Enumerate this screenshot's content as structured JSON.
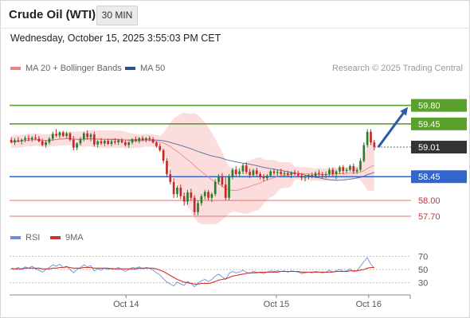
{
  "header": {
    "instrument": "Crude Oil (WTI)",
    "timeframe": "30 MIN",
    "datetime": "Wednesday, October 15, 2025 3:55:03 PM CET"
  },
  "legend": {
    "ma20": "MA 20 + Bollinger Bands",
    "ma50": "MA 50",
    "credit": "Research © 2025 Trading Central",
    "rsi": "RSI",
    "rsi_ma": "9MA"
  },
  "colors": {
    "ma20": "#f08080",
    "bollinger_fill": "#fbd9d9",
    "ma50": "#2c4f8f",
    "resistance": "#5aa02c",
    "pivot": "#3366cc",
    "support": "#e57373",
    "forecast_arrow": "#2b5ca8",
    "candle_up": "#2a7d2a",
    "candle_down": "#c62828",
    "rsi": "#6a8fd8",
    "rsi_ma": "#d32f2f",
    "price_tag": "#333333"
  },
  "chart_data": [
    {
      "type": "candlestick",
      "title": "Crude Oil (WTI)",
      "timeframe": "30 MIN",
      "x_ticks": [
        "Oct 14",
        "Oct 15",
        "Oct 16"
      ],
      "ylim": [
        57.55,
        60.05
      ],
      "current_price": 59.01,
      "levels": [
        {
          "value": 59.8,
          "label": "59.80",
          "kind": "resistance",
          "style": "green-tag"
        },
        {
          "value": 59.45,
          "label": "59.45",
          "kind": "resistance",
          "style": "green-tag"
        },
        {
          "value": 58.45,
          "label": "58.45",
          "kind": "pivot",
          "style": "blue-tag"
        },
        {
          "value": 58.0,
          "label": "58.00",
          "kind": "support",
          "style": "red-text"
        },
        {
          "value": 57.7,
          "label": "57.70",
          "kind": "support",
          "style": "red-text"
        }
      ],
      "forecast": {
        "direction": "up",
        "from": 59.01,
        "to": 59.8
      },
      "candles": [
        [
          59.15,
          59.2,
          59.08,
          59.1
        ],
        [
          59.1,
          59.18,
          59.05,
          59.14
        ],
        [
          59.14,
          59.2,
          59.1,
          59.12
        ],
        [
          59.12,
          59.17,
          59.06,
          59.15
        ],
        [
          59.15,
          59.22,
          59.1,
          59.18
        ],
        [
          59.18,
          59.24,
          59.12,
          59.16
        ],
        [
          59.16,
          59.22,
          59.11,
          59.19
        ],
        [
          59.19,
          59.25,
          59.14,
          59.17
        ],
        [
          59.17,
          59.22,
          59.1,
          59.12
        ],
        [
          59.12,
          59.17,
          59.02,
          59.05
        ],
        [
          59.05,
          59.14,
          59.0,
          59.1
        ],
        [
          59.1,
          59.2,
          59.06,
          59.17
        ],
        [
          59.17,
          59.3,
          59.13,
          59.26
        ],
        [
          59.26,
          59.35,
          59.2,
          59.23
        ],
        [
          59.23,
          59.31,
          59.18,
          59.29
        ],
        [
          59.29,
          59.32,
          59.2,
          59.22
        ],
        [
          59.22,
          59.3,
          59.18,
          59.27
        ],
        [
          59.27,
          59.3,
          59.12,
          59.15
        ],
        [
          59.15,
          59.22,
          58.95,
          59.0
        ],
        [
          59.0,
          59.1,
          58.95,
          59.08
        ],
        [
          59.08,
          59.2,
          59.04,
          59.16
        ],
        [
          59.16,
          59.3,
          59.12,
          59.27
        ],
        [
          59.27,
          59.33,
          59.15,
          59.2
        ],
        [
          59.2,
          59.28,
          59.12,
          59.25
        ],
        [
          59.25,
          59.3,
          59.02,
          59.06
        ],
        [
          59.06,
          59.14,
          59.0,
          59.12
        ],
        [
          59.12,
          59.18,
          59.05,
          59.08
        ],
        [
          59.08,
          59.15,
          59.03,
          59.13
        ],
        [
          59.13,
          59.17,
          59.05,
          59.07
        ],
        [
          59.07,
          59.15,
          59.03,
          59.12
        ],
        [
          59.12,
          59.18,
          59.06,
          59.1
        ],
        [
          59.1,
          59.16,
          59.05,
          59.14
        ],
        [
          59.14,
          59.18,
          59.08,
          59.1
        ],
        [
          59.1,
          59.14,
          59.02,
          59.05
        ],
        [
          59.05,
          59.12,
          59.0,
          59.1
        ],
        [
          59.1,
          59.18,
          59.06,
          59.16
        ],
        [
          59.16,
          59.21,
          59.1,
          59.13
        ],
        [
          59.13,
          59.2,
          59.08,
          59.18
        ],
        [
          59.18,
          59.22,
          59.12,
          59.15
        ],
        [
          59.15,
          59.2,
          59.1,
          59.18
        ],
        [
          59.18,
          59.22,
          59.12,
          59.16
        ],
        [
          59.16,
          59.2,
          59.08,
          59.1
        ],
        [
          59.1,
          59.12,
          59.0,
          59.03
        ],
        [
          59.03,
          59.08,
          58.92,
          58.95
        ],
        [
          58.95,
          58.98,
          58.7,
          58.75
        ],
        [
          58.75,
          58.8,
          58.45,
          58.5
        ],
        [
          58.5,
          58.58,
          58.3,
          58.35
        ],
        [
          58.35,
          58.42,
          58.05,
          58.12
        ],
        [
          58.12,
          58.28,
          58.05,
          58.24
        ],
        [
          58.24,
          58.3,
          58.02,
          58.08
        ],
        [
          58.08,
          58.15,
          57.9,
          57.98
        ],
        [
          57.98,
          58.2,
          57.92,
          58.15
        ],
        [
          58.15,
          58.22,
          58.0,
          58.05
        ],
        [
          58.05,
          58.1,
          57.72,
          57.78
        ],
        [
          57.78,
          58.0,
          57.72,
          57.95
        ],
        [
          57.95,
          58.12,
          57.9,
          58.08
        ],
        [
          58.08,
          58.2,
          58.02,
          58.16
        ],
        [
          58.16,
          58.2,
          58.0,
          58.05
        ],
        [
          58.05,
          58.15,
          57.97,
          58.12
        ],
        [
          58.12,
          58.4,
          58.08,
          58.35
        ],
        [
          58.35,
          58.5,
          58.3,
          58.46
        ],
        [
          58.46,
          58.52,
          58.25,
          58.3
        ],
        [
          58.3,
          58.45,
          58.0,
          58.05
        ],
        [
          58.05,
          58.5,
          58.0,
          58.45
        ],
        [
          58.45,
          58.62,
          58.4,
          58.58
        ],
        [
          58.58,
          58.65,
          58.45,
          58.5
        ],
        [
          58.5,
          58.6,
          58.44,
          58.55
        ],
        [
          58.55,
          58.7,
          58.5,
          58.66
        ],
        [
          58.66,
          58.72,
          58.5,
          58.54
        ],
        [
          58.54,
          58.6,
          58.42,
          58.48
        ],
        [
          58.48,
          58.6,
          58.46,
          58.57
        ],
        [
          58.57,
          58.62,
          58.45,
          58.5
        ],
        [
          58.5,
          58.54,
          58.4,
          58.45
        ],
        [
          58.45,
          58.5,
          58.36,
          58.42
        ],
        [
          58.42,
          58.5,
          58.38,
          58.47
        ],
        [
          58.47,
          58.58,
          58.44,
          58.55
        ],
        [
          58.55,
          58.6,
          58.48,
          58.52
        ],
        [
          58.52,
          58.58,
          58.46,
          58.54
        ],
        [
          58.54,
          58.6,
          58.48,
          58.5
        ],
        [
          58.5,
          58.55,
          58.45,
          58.52
        ],
        [
          58.52,
          58.56,
          58.46,
          58.49
        ],
        [
          58.49,
          58.55,
          58.42,
          58.53
        ],
        [
          58.53,
          58.58,
          58.47,
          58.5
        ],
        [
          58.5,
          58.56,
          58.44,
          58.47
        ],
        [
          58.47,
          58.52,
          58.38,
          58.43
        ],
        [
          58.43,
          58.48,
          58.36,
          58.45
        ],
        [
          58.45,
          58.5,
          58.4,
          58.48
        ],
        [
          58.48,
          58.53,
          58.42,
          58.46
        ],
        [
          58.46,
          58.55,
          58.42,
          58.52
        ],
        [
          58.52,
          58.58,
          58.46,
          58.5
        ],
        [
          58.5,
          58.54,
          58.42,
          58.48
        ],
        [
          58.48,
          58.55,
          58.42,
          58.5
        ],
        [
          58.5,
          58.62,
          58.45,
          58.58
        ],
        [
          58.58,
          58.62,
          58.45,
          58.5
        ],
        [
          58.5,
          58.58,
          58.4,
          58.55
        ],
        [
          58.55,
          58.66,
          58.5,
          58.63
        ],
        [
          58.63,
          58.67,
          58.5,
          58.56
        ],
        [
          58.56,
          58.62,
          58.52,
          58.58
        ],
        [
          58.58,
          58.68,
          58.55,
          58.65
        ],
        [
          58.65,
          58.7,
          58.5,
          58.55
        ],
        [
          58.55,
          58.62,
          58.5,
          58.58
        ],
        [
          58.58,
          58.8,
          58.55,
          58.75
        ],
        [
          58.75,
          59.1,
          58.72,
          59.05
        ],
        [
          59.05,
          59.35,
          59.0,
          59.3
        ],
        [
          59.3,
          59.35,
          59.05,
          59.1
        ],
        [
          59.1,
          59.15,
          58.95,
          59.01
        ]
      ]
    },
    {
      "type": "line",
      "title": "RSI",
      "ylim": [
        20,
        80
      ],
      "y_ticks": [
        70,
        50,
        30
      ],
      "series": [
        {
          "name": "RSI",
          "values": [
            52,
            51,
            53,
            50,
            54,
            52,
            55,
            51,
            49,
            46,
            50,
            53,
            57,
            55,
            58,
            53,
            55,
            50,
            45,
            50,
            53,
            57,
            54,
            56,
            48,
            51,
            49,
            52,
            50,
            52,
            51,
            53,
            50,
            47,
            50,
            53,
            52,
            54,
            51,
            53,
            52,
            49,
            45,
            42,
            36,
            31,
            28,
            25,
            31,
            28,
            26,
            32,
            29,
            24,
            29,
            33,
            35,
            32,
            35,
            40,
            43,
            39,
            35,
            44,
            47,
            45,
            46,
            49,
            46,
            44,
            47,
            46,
            45,
            44,
            46,
            48,
            47,
            48,
            47,
            48,
            46,
            48,
            47,
            46,
            44,
            45,
            46,
            45,
            47,
            46,
            45,
            46,
            49,
            46,
            48,
            50,
            47,
            48,
            51,
            47,
            48,
            55,
            62,
            68,
            58,
            52
          ]
        },
        {
          "name": "9MA",
          "values": [
            51,
            51,
            51,
            51,
            52,
            52,
            52,
            52,
            52,
            51,
            51,
            51,
            52,
            52,
            53,
            53,
            54,
            53,
            52,
            52,
            52,
            53,
            53,
            53,
            52,
            52,
            52,
            52,
            52,
            51,
            51,
            51,
            51,
            51,
            51,
            51,
            51,
            52,
            52,
            52,
            52,
            52,
            51,
            49,
            47,
            44,
            41,
            38,
            35,
            33,
            31,
            30,
            29,
            28,
            28,
            29,
            29,
            29,
            30,
            32,
            34,
            35,
            36,
            38,
            40,
            41,
            42,
            43,
            44,
            45,
            45,
            45,
            46,
            46,
            46,
            46,
            46,
            46,
            47,
            47,
            47,
            47,
            47,
            47,
            46,
            46,
            46,
            46,
            46,
            46,
            46,
            46,
            46,
            46,
            47,
            47,
            47,
            47,
            48,
            48,
            48,
            49,
            50,
            52,
            53,
            53
          ]
        }
      ]
    }
  ]
}
